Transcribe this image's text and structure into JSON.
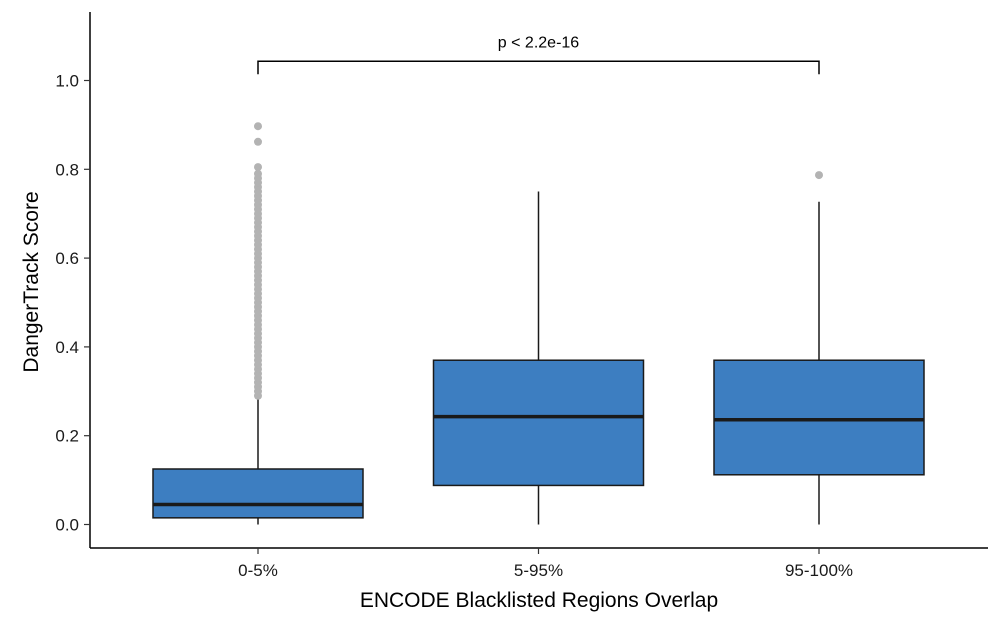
{
  "chart_data": {
    "type": "box",
    "xlabel": "ENCODE Blacklisted Regions Overlap",
    "ylabel": "DangerTrack Score",
    "ylim": [
      -0.05,
      1.05
    ],
    "yticks": [
      0.0,
      0.2,
      0.4,
      0.6,
      0.8,
      1.0
    ],
    "ytick_labels": [
      "0.0",
      "0.2",
      "0.4",
      "0.6",
      "0.8",
      "1.0"
    ],
    "box_color": "#3d7ec1",
    "outlier_color": "#b3b3b3",
    "categories": [
      "0-5%",
      "5-95%",
      "95-100%"
    ],
    "boxes": [
      {
        "category": "0-5%",
        "min": 0.0,
        "q1": 0.015,
        "median": 0.045,
        "q3": 0.125,
        "max": 0.29,
        "outliers": [
          0.29,
          0.3,
          0.31,
          0.32,
          0.33,
          0.34,
          0.35,
          0.36,
          0.37,
          0.38,
          0.39,
          0.4,
          0.41,
          0.42,
          0.43,
          0.44,
          0.45,
          0.46,
          0.47,
          0.48,
          0.49,
          0.5,
          0.51,
          0.52,
          0.53,
          0.54,
          0.55,
          0.56,
          0.57,
          0.58,
          0.59,
          0.6,
          0.61,
          0.62,
          0.63,
          0.64,
          0.65,
          0.66,
          0.67,
          0.68,
          0.69,
          0.7,
          0.71,
          0.72,
          0.73,
          0.74,
          0.75,
          0.76,
          0.77,
          0.78,
          0.79,
          0.805,
          0.862,
          0.897
        ]
      },
      {
        "category": "5-95%",
        "min": 0.0,
        "q1": 0.088,
        "median": 0.243,
        "q3": 0.37,
        "max": 0.75,
        "outliers": []
      },
      {
        "category": "95-100%",
        "min": 0.0,
        "q1": 0.112,
        "median": 0.236,
        "q3": 0.37,
        "max": 0.727,
        "outliers": [
          0.787
        ]
      }
    ],
    "significance": {
      "from": "0-5%",
      "to": "95-100%",
      "y": 1.05,
      "label": "p < 2.2e-16"
    },
    "grid": false,
    "legend": "none"
  }
}
